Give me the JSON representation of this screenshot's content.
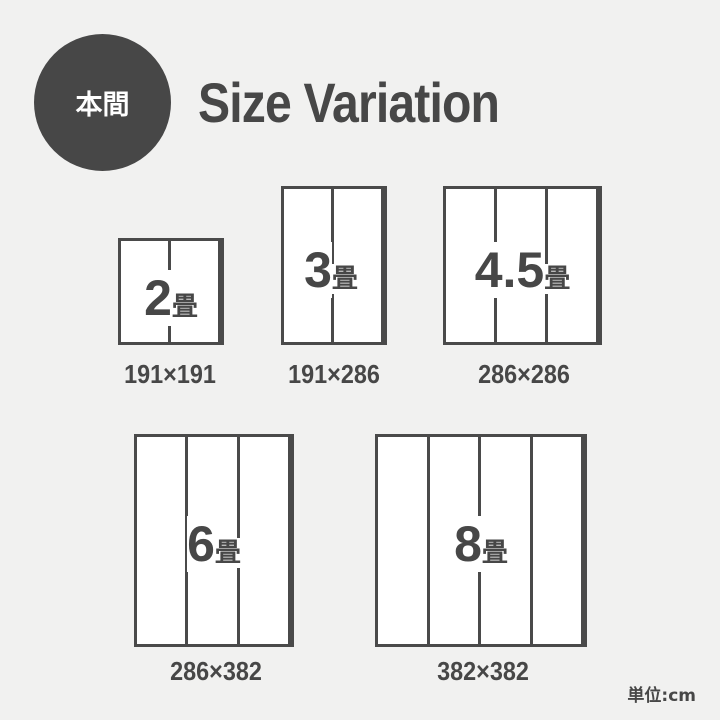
{
  "badge": "本間",
  "title": "Size Variation",
  "rooms": [
    {
      "number": "2",
      "unit": "畳",
      "panels": 2,
      "dimensions": "191×191"
    },
    {
      "number": "3",
      "unit": "畳",
      "panels": 2,
      "dimensions": "191×286"
    },
    {
      "number": "4.5",
      "unit": "畳",
      "panels": 3,
      "dimensions": "286×286"
    },
    {
      "number": "6",
      "unit": "畳",
      "panels": 3,
      "dimensions": "286×382"
    },
    {
      "number": "8",
      "unit": "畳",
      "panels": 4,
      "dimensions": "382×382"
    }
  ],
  "unit_note": "単位:cm",
  "colors": {
    "dark": "#474747",
    "background": "#f1f1f0"
  }
}
